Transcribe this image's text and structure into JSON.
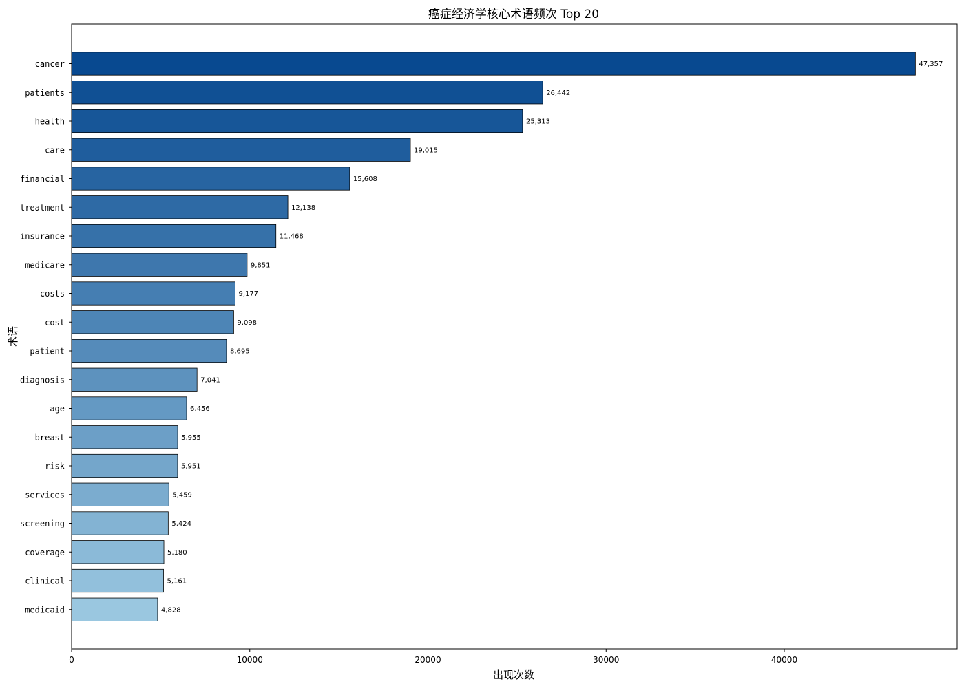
{
  "chart_data": {
    "type": "bar",
    "orientation": "horizontal",
    "title": "癌症经济学核心术语频次 Top 20",
    "xlabel": "出现次数",
    "ylabel": "术语",
    "xlim": [
      0,
      49700
    ],
    "xticks": [
      0,
      10000,
      20000,
      30000,
      40000
    ],
    "xtick_labels": [
      "0",
      "10000",
      "20000",
      "30000",
      "40000"
    ],
    "grid": false,
    "legend": "none",
    "colormap": "blues",
    "color_dark": "#084990",
    "color_light": "#9ac7e0",
    "bar_edge_color": "#000000",
    "categories": [
      "cancer",
      "patients",
      "health",
      "care",
      "financial",
      "treatment",
      "insurance",
      "medicare",
      "costs",
      "cost",
      "patient",
      "diagnosis",
      "age",
      "breast",
      "risk",
      "services",
      "screening",
      "coverage",
      "clinical",
      "medicaid"
    ],
    "values": [
      47357,
      26442,
      25313,
      19015,
      15608,
      12138,
      11468,
      9851,
      9177,
      9098,
      8695,
      7041,
      6456,
      5955,
      5951,
      5459,
      5424,
      5180,
      5161,
      4828
    ],
    "value_labels": [
      "47,357",
      "26,442",
      "25,313",
      "19,015",
      "15,608",
      "12,138",
      "11,468",
      "9,851",
      "9,177",
      "9,098",
      "8,695",
      "7,041",
      "6,456",
      "5,955",
      "5,951",
      "5,459",
      "5,424",
      "5,180",
      "5,161",
      "4,828"
    ]
  }
}
